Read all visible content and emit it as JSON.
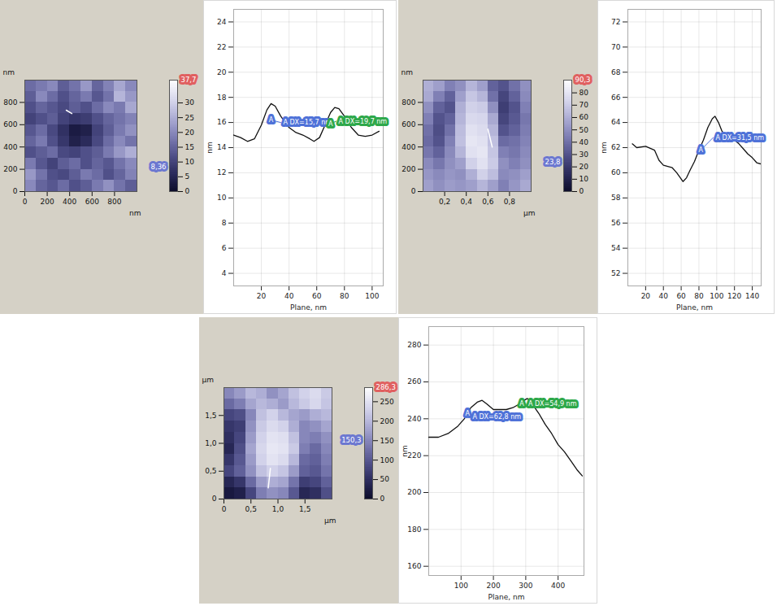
{
  "chart_data": [
    {
      "type": "heatmap",
      "x_label": "nm",
      "y_label": "nm",
      "xlim": [
        0,
        1000
      ],
      "ylim": [
        0,
        1000
      ],
      "xticks": [
        0,
        200,
        400,
        600,
        800
      ],
      "yticks": [
        0,
        200,
        400,
        600,
        800
      ],
      "cells": [
        [
          16,
          18,
          20,
          14,
          17,
          22,
          15,
          19,
          24,
          20
        ],
        [
          14,
          20,
          16,
          12,
          15,
          18,
          13,
          17,
          26,
          22
        ],
        [
          12,
          15,
          13,
          11,
          14,
          12,
          16,
          20,
          18,
          24
        ],
        [
          10,
          12,
          14,
          10,
          8,
          9,
          12,
          15,
          17,
          19
        ],
        [
          13,
          16,
          11,
          7,
          3,
          4,
          10,
          14,
          18,
          21
        ],
        [
          15,
          18,
          12,
          8,
          4,
          6,
          11,
          16,
          20,
          17
        ],
        [
          12,
          14,
          16,
          11,
          10,
          12,
          14,
          18,
          22,
          25
        ],
        [
          18,
          13,
          10,
          14,
          16,
          12,
          15,
          13,
          17,
          20
        ],
        [
          22,
          17,
          12,
          11,
          14,
          18,
          16,
          12,
          15,
          19
        ],
        [
          20,
          15,
          13,
          16,
          12,
          14,
          18,
          21,
          17,
          14
        ]
      ],
      "colorbar": {
        "range": [
          0,
          37.7
        ],
        "ticks": [
          0,
          5,
          10,
          15,
          20,
          25,
          30
        ],
        "max_label": "37,7",
        "marker": {
          "value": 8.36,
          "label": "8,36"
        }
      },
      "profile_line": {
        "x": [
          370,
          420
        ],
        "y": [
          730,
          700
        ]
      }
    },
    {
      "type": "line",
      "x_label": "Plane, nm",
      "y_label": "nm",
      "color": "#111111",
      "grid": true,
      "xlim": [
        0,
        108
      ],
      "ylim": [
        3,
        25
      ],
      "xticks": [
        20,
        40,
        60,
        80,
        100
      ],
      "yticks": [
        4,
        6,
        8,
        10,
        12,
        14,
        16,
        18,
        20,
        22,
        24
      ],
      "x": [
        0,
        5,
        10,
        15,
        20,
        24,
        27,
        30,
        34,
        40,
        45,
        50,
        55,
        58,
        62,
        66,
        70,
        73,
        76,
        80,
        85,
        90,
        95,
        100,
        105
      ],
      "values": [
        15.0,
        14.8,
        14.5,
        14.7,
        15.8,
        17.0,
        17.5,
        17.3,
        16.5,
        15.6,
        15.2,
        15.0,
        14.7,
        14.5,
        14.8,
        15.8,
        16.8,
        17.2,
        17.1,
        16.5,
        15.6,
        15.0,
        14.9,
        15.0,
        15.3
      ],
      "measurements": [
        {
          "label": "A",
          "x1": 27,
          "y1": 16.2,
          "x2": 34,
          "y2": 16.0,
          "text": "A DX=15,7 nm",
          "color": "#4f72d8"
        },
        {
          "label": "A",
          "x1": 70,
          "y1": 15.9,
          "x2": 74,
          "y2": 16.1,
          "text": "A DX=19,7 nm",
          "color": "#2ea84a"
        }
      ]
    },
    {
      "type": "heatmap",
      "x_label": "µm",
      "y_label": "nm",
      "xlim": [
        0,
        1
      ],
      "ylim": [
        0,
        1000
      ],
      "xticks": [
        {
          "value": 0.2,
          "label": "0,2"
        },
        {
          "value": 0.4,
          "label": "0,4"
        },
        {
          "value": 0.6,
          "label": "0,6"
        },
        {
          "value": 0.8,
          "label": "0,8"
        }
      ],
      "yticks": [
        0,
        200,
        400,
        600,
        800
      ],
      "cells": [
        [
          60,
          55,
          45,
          50,
          62,
          55,
          35,
          30,
          40,
          50
        ],
        [
          58,
          45,
          35,
          55,
          68,
          62,
          40,
          25,
          35,
          48
        ],
        [
          50,
          35,
          30,
          60,
          72,
          70,
          50,
          22,
          30,
          45
        ],
        [
          45,
          30,
          35,
          62,
          75,
          74,
          58,
          25,
          32,
          42
        ],
        [
          40,
          28,
          40,
          65,
          78,
          76,
          62,
          30,
          35,
          44
        ],
        [
          38,
          30,
          45,
          66,
          80,
          78,
          66,
          38,
          40,
          46
        ],
        [
          42,
          35,
          48,
          62,
          78,
          80,
          68,
          45,
          42,
          48
        ],
        [
          48,
          42,
          50,
          55,
          72,
          78,
          70,
          50,
          45,
          50
        ],
        [
          52,
          48,
          52,
          50,
          60,
          72,
          65,
          48,
          50,
          55
        ],
        [
          55,
          50,
          54,
          52,
          55,
          62,
          55,
          45,
          52,
          58
        ]
      ],
      "colorbar": {
        "range": [
          0,
          90.3
        ],
        "ticks": [
          0,
          10,
          20,
          30,
          40,
          50,
          60,
          70,
          80
        ],
        "max_label": "90,3",
        "marker": {
          "value": 23.8,
          "label": "23,8"
        }
      },
      "profile_line": {
        "x": [
          0.6,
          0.64
        ],
        "y": [
          560,
          400
        ]
      }
    },
    {
      "type": "line",
      "x_label": "Plane, nm",
      "y_label": "nm",
      "color": "#111111",
      "grid": true,
      "xlim": [
        0,
        150
      ],
      "ylim": [
        51,
        73
      ],
      "xticks": [
        20,
        40,
        60,
        80,
        100,
        120,
        140
      ],
      "yticks": [
        52,
        54,
        56,
        58,
        60,
        62,
        64,
        66,
        68,
        70,
        72
      ],
      "x": [
        5,
        10,
        20,
        30,
        35,
        40,
        50,
        55,
        62,
        66,
        70,
        75,
        80,
        85,
        90,
        95,
        98,
        102,
        106,
        110,
        115,
        120,
        125,
        130,
        135,
        140,
        145,
        150
      ],
      "values": [
        62.3,
        62.0,
        62.1,
        61.8,
        61.0,
        60.6,
        60.4,
        60.0,
        59.3,
        59.6,
        60.2,
        60.9,
        61.8,
        62.6,
        63.6,
        64.3,
        64.5,
        64.0,
        63.3,
        63.0,
        62.8,
        62.6,
        62.3,
        61.9,
        61.5,
        61.2,
        60.8,
        60.7
      ],
      "measurements": [
        {
          "label": "A",
          "x1": 82,
          "y1": 61.8,
          "x2": 96,
          "y2": 62.8,
          "text": "A DX=31,5 nm",
          "color": "#4f72d8"
        }
      ]
    },
    {
      "type": "heatmap",
      "x_label": "µm",
      "y_label": "µm",
      "xlim": [
        0,
        2
      ],
      "ylim": [
        0,
        2
      ],
      "xticks": [
        0,
        {
          "value": 0.5,
          "label": "0,5"
        },
        {
          "value": 1,
          "label": "1,0"
        },
        {
          "value": 1.5,
          "label": "1,5"
        }
      ],
      "yticks": [
        0,
        {
          "value": 0.5,
          "label": "0,5"
        },
        {
          "value": 1,
          "label": "1,0"
        },
        {
          "value": 1.5,
          "label": "1,5"
        }
      ],
      "cells": [
        [
          150,
          170,
          200,
          190,
          160,
          180,
          210,
          230,
          240,
          220
        ],
        [
          120,
          140,
          180,
          200,
          190,
          170,
          200,
          220,
          235,
          215
        ],
        [
          80,
          90,
          150,
          210,
          230,
          200,
          180,
          170,
          190,
          200
        ],
        [
          60,
          70,
          160,
          220,
          240,
          230,
          190,
          150,
          160,
          180
        ],
        [
          50,
          80,
          170,
          230,
          250,
          245,
          210,
          150,
          140,
          160
        ],
        [
          40,
          90,
          180,
          235,
          255,
          250,
          220,
          140,
          120,
          150
        ],
        [
          60,
          100,
          170,
          230,
          250,
          240,
          200,
          120,
          110,
          140
        ],
        [
          80,
          110,
          160,
          210,
          230,
          215,
          170,
          110,
          100,
          130
        ],
        [
          40,
          60,
          120,
          170,
          190,
          180,
          130,
          70,
          80,
          110
        ],
        [
          20,
          30,
          80,
          140,
          160,
          150,
          100,
          40,
          50,
          90
        ]
      ],
      "colorbar": {
        "range": [
          0,
          286.3
        ],
        "ticks": [
          0,
          50,
          100,
          150,
          200,
          250
        ],
        "max_label": "286,3",
        "marker": {
          "value": 150.3,
          "label": "150,3"
        }
      },
      "profile_line": {
        "x": [
          0.82,
          0.86
        ],
        "y": [
          0.2,
          0.55
        ]
      }
    },
    {
      "type": "line",
      "x_label": "Plane, nm",
      "y_label": "nm",
      "color": "#111111",
      "grid": true,
      "xlim": [
        0,
        480
      ],
      "ylim": [
        155,
        290
      ],
      "xticks": [
        100,
        200,
        300,
        400
      ],
      "yticks": [
        160,
        180,
        200,
        220,
        240,
        260,
        280
      ],
      "x": [
        0,
        30,
        60,
        90,
        110,
        130,
        150,
        165,
        180,
        200,
        220,
        240,
        260,
        280,
        295,
        305,
        320,
        340,
        360,
        380,
        400,
        420,
        440,
        460,
        475
      ],
      "values": [
        230,
        230,
        232,
        236,
        240,
        246,
        249,
        250,
        248,
        245,
        245,
        245,
        246,
        248,
        250,
        251,
        248,
        243,
        237,
        232,
        226,
        222,
        217,
        212,
        209
      ],
      "measurements": [
        {
          "label": "A",
          "x1": 120,
          "y1": 243,
          "x2": 128,
          "y2": 241,
          "text": "A DX=62,8 nm",
          "color": "#4f72d8"
        },
        {
          "label": "A",
          "x1": 288,
          "y1": 248,
          "x2": 300,
          "y2": 248,
          "text": "A DX=54,9 nm",
          "color": "#2ea84a"
        }
      ]
    }
  ]
}
